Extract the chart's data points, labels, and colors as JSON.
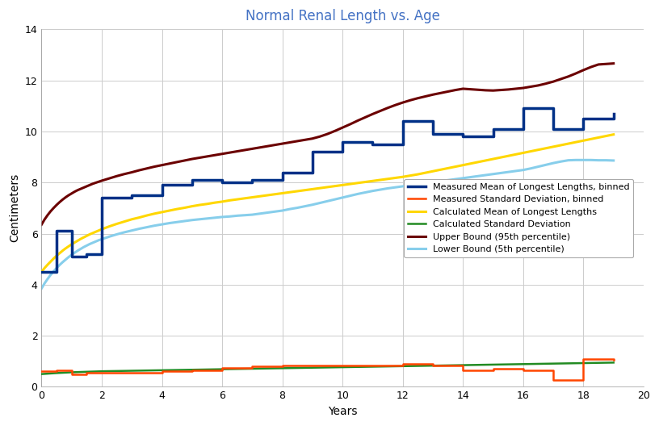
{
  "title": "Normal Renal Length vs. Age",
  "xlabel": "Years",
  "ylabel": "Centimeters",
  "xlim": [
    0,
    20
  ],
  "ylim": [
    0,
    14
  ],
  "xticks": [
    0,
    2,
    4,
    6,
    8,
    10,
    12,
    14,
    16,
    18,
    20
  ],
  "yticks": [
    0,
    2,
    4,
    6,
    8,
    10,
    12,
    14
  ],
  "title_color": "#4472C4",
  "background_color": "#FFFFFF",
  "legend": {
    "labels": [
      "Measured Mean of Longest Lengths, binned",
      "Measured Standard Deviation, binned",
      "Calculated Mean of Longest Lengths",
      "Calculated Standard Deviation",
      "Upper Bound (95th percentile)",
      "Lower Bound (5th percentile)"
    ],
    "colors": [
      "#003087",
      "#FF4500",
      "#FFD700",
      "#228B22",
      "#6B0000",
      "#87CEEB"
    ],
    "linewidths": [
      2.5,
      1.8,
      2.2,
      1.8,
      2.2,
      2.2
    ]
  },
  "measured_mean_binned_steps": {
    "x": [
      0.0,
      0.5,
      1.0,
      1.5,
      2.0,
      3.0,
      4.0,
      5.0,
      6.0,
      7.0,
      8.0,
      9.0,
      10.0,
      11.0,
      12.0,
      13.0,
      14.0,
      15.0,
      16.0,
      17.0,
      18.0,
      19.0
    ],
    "y": [
      4.5,
      6.1,
      5.1,
      5.2,
      7.4,
      7.5,
      7.9,
      8.1,
      8.0,
      8.1,
      8.4,
      9.2,
      9.6,
      9.5,
      10.4,
      9.9,
      9.8,
      10.1,
      10.9,
      10.1,
      10.5,
      10.7
    ],
    "color": "#003087",
    "linewidth": 2.5
  },
  "measured_std_binned_steps": {
    "x": [
      0.0,
      0.5,
      1.0,
      1.5,
      2.0,
      3.0,
      4.0,
      5.0,
      6.0,
      7.0,
      8.0,
      9.0,
      10.0,
      11.0,
      12.0,
      13.0,
      14.0,
      15.0,
      16.0,
      17.0,
      18.0,
      19.0
    ],
    "y": [
      0.6,
      0.65,
      0.5,
      0.55,
      0.55,
      0.55,
      0.6,
      0.65,
      0.75,
      0.8,
      0.85,
      0.85,
      0.85,
      0.85,
      0.9,
      0.85,
      0.65,
      0.7,
      0.65,
      0.28,
      1.1,
      1.05
    ],
    "color": "#FF4500",
    "linewidth": 1.8
  },
  "calc_mean": {
    "x": [
      0.0,
      0.1,
      0.2,
      0.3,
      0.4,
      0.5,
      0.6,
      0.7,
      0.8,
      0.9,
      1.0,
      1.1,
      1.2,
      1.3,
      1.4,
      1.5,
      1.6,
      1.7,
      1.8,
      1.9,
      2.0,
      2.25,
      2.5,
      2.75,
      3.0,
      3.25,
      3.5,
      3.75,
      4.0,
      4.25,
      4.5,
      4.75,
      5.0,
      5.25,
      5.5,
      5.75,
      6.0,
      6.25,
      6.5,
      6.75,
      7.0,
      7.25,
      7.5,
      7.75,
      8.0,
      8.25,
      8.5,
      8.75,
      9.0,
      9.25,
      9.5,
      9.75,
      10.0,
      10.25,
      10.5,
      10.75,
      11.0,
      11.25,
      11.5,
      11.75,
      12.0,
      12.25,
      12.5,
      12.75,
      13.0,
      13.25,
      13.5,
      13.75,
      14.0,
      14.25,
      14.5,
      14.75,
      15.0,
      15.25,
      15.5,
      15.75,
      16.0,
      16.25,
      16.5,
      16.75,
      17.0,
      17.25,
      17.5,
      17.75,
      18.0,
      18.25,
      18.5,
      18.75,
      19.0
    ],
    "y": [
      4.5,
      4.65,
      4.78,
      4.9,
      5.02,
      5.13,
      5.23,
      5.33,
      5.42,
      5.5,
      5.58,
      5.65,
      5.72,
      5.79,
      5.85,
      5.91,
      5.97,
      6.02,
      6.07,
      6.12,
      6.17,
      6.28,
      6.38,
      6.47,
      6.56,
      6.63,
      6.71,
      6.78,
      6.84,
      6.9,
      6.96,
      7.01,
      7.07,
      7.12,
      7.16,
      7.21,
      7.25,
      7.3,
      7.34,
      7.38,
      7.42,
      7.46,
      7.5,
      7.54,
      7.58,
      7.62,
      7.66,
      7.7,
      7.74,
      7.78,
      7.82,
      7.86,
      7.9,
      7.94,
      7.98,
      8.02,
      8.06,
      8.1,
      8.14,
      8.18,
      8.22,
      8.27,
      8.32,
      8.38,
      8.44,
      8.5,
      8.56,
      8.62,
      8.68,
      8.74,
      8.8,
      8.86,
      8.92,
      8.98,
      9.04,
      9.1,
      9.16,
      9.22,
      9.28,
      9.34,
      9.4,
      9.46,
      9.52,
      9.58,
      9.64,
      9.7,
      9.76,
      9.82,
      9.88
    ],
    "color": "#FFD700",
    "linewidth": 2.2
  },
  "calc_std": {
    "x": [
      0.0,
      0.5,
      1.0,
      1.5,
      2.0,
      3.0,
      4.0,
      5.0,
      6.0,
      7.0,
      8.0,
      9.0,
      10.0,
      11.0,
      12.0,
      13.0,
      14.0,
      15.0,
      16.0,
      17.0,
      18.0,
      19.0
    ],
    "y": [
      0.5,
      0.54,
      0.57,
      0.59,
      0.61,
      0.63,
      0.65,
      0.67,
      0.69,
      0.71,
      0.73,
      0.75,
      0.77,
      0.79,
      0.81,
      0.83,
      0.85,
      0.87,
      0.89,
      0.91,
      0.93,
      0.95
    ],
    "color": "#228B22",
    "linewidth": 1.8
  },
  "upper_bound": {
    "x": [
      0.0,
      0.1,
      0.2,
      0.3,
      0.4,
      0.5,
      0.6,
      0.7,
      0.8,
      0.9,
      1.0,
      1.1,
      1.2,
      1.3,
      1.4,
      1.5,
      1.6,
      1.7,
      1.8,
      1.9,
      2.0,
      2.25,
      2.5,
      2.75,
      3.0,
      3.25,
      3.5,
      3.75,
      4.0,
      4.25,
      4.5,
      4.75,
      5.0,
      5.25,
      5.5,
      5.75,
      6.0,
      6.25,
      6.5,
      6.75,
      7.0,
      7.25,
      7.5,
      7.75,
      8.0,
      8.25,
      8.5,
      8.75,
      9.0,
      9.25,
      9.5,
      9.75,
      10.0,
      10.25,
      10.5,
      10.75,
      11.0,
      11.25,
      11.5,
      11.75,
      12.0,
      12.25,
      12.5,
      12.75,
      13.0,
      13.25,
      13.5,
      13.75,
      14.0,
      14.25,
      14.5,
      14.75,
      15.0,
      15.25,
      15.5,
      15.75,
      16.0,
      16.25,
      16.5,
      16.75,
      17.0,
      17.25,
      17.5,
      17.75,
      18.0,
      18.25,
      18.5,
      18.75,
      19.0
    ],
    "y": [
      6.35,
      6.55,
      6.72,
      6.87,
      7.0,
      7.12,
      7.23,
      7.33,
      7.42,
      7.5,
      7.57,
      7.64,
      7.7,
      7.75,
      7.8,
      7.85,
      7.9,
      7.95,
      7.99,
      8.03,
      8.07,
      8.16,
      8.25,
      8.33,
      8.4,
      8.48,
      8.55,
      8.62,
      8.68,
      8.74,
      8.8,
      8.86,
      8.92,
      8.97,
      9.02,
      9.07,
      9.12,
      9.17,
      9.22,
      9.27,
      9.32,
      9.37,
      9.42,
      9.47,
      9.52,
      9.57,
      9.62,
      9.67,
      9.72,
      9.8,
      9.9,
      10.02,
      10.15,
      10.28,
      10.42,
      10.55,
      10.68,
      10.8,
      10.92,
      11.03,
      11.13,
      11.22,
      11.3,
      11.37,
      11.44,
      11.5,
      11.56,
      11.62,
      11.67,
      11.65,
      11.63,
      11.61,
      11.6,
      11.62,
      11.64,
      11.67,
      11.7,
      11.75,
      11.8,
      11.87,
      11.95,
      12.05,
      12.15,
      12.27,
      12.4,
      12.52,
      12.62,
      12.64,
      12.66
    ],
    "color": "#6B0000",
    "linewidth": 2.2
  },
  "lower_bound": {
    "x": [
      0.0,
      0.1,
      0.2,
      0.3,
      0.4,
      0.5,
      0.6,
      0.7,
      0.8,
      0.9,
      1.0,
      1.1,
      1.2,
      1.3,
      1.4,
      1.5,
      1.6,
      1.7,
      1.8,
      1.9,
      2.0,
      2.25,
      2.5,
      2.75,
      3.0,
      3.25,
      3.5,
      3.75,
      4.0,
      4.25,
      4.5,
      4.75,
      5.0,
      5.25,
      5.5,
      5.75,
      6.0,
      6.25,
      6.5,
      6.75,
      7.0,
      7.25,
      7.5,
      7.75,
      8.0,
      8.25,
      8.5,
      8.75,
      9.0,
      9.25,
      9.5,
      9.75,
      10.0,
      10.25,
      10.5,
      10.75,
      11.0,
      11.25,
      11.5,
      11.75,
      12.0,
      12.25,
      12.5,
      12.75,
      13.0,
      13.25,
      13.5,
      13.75,
      14.0,
      14.25,
      14.5,
      14.75,
      15.0,
      15.25,
      15.5,
      15.75,
      16.0,
      16.25,
      16.5,
      16.75,
      17.0,
      17.25,
      17.5,
      17.75,
      18.0,
      18.25,
      18.5,
      18.75,
      19.0
    ],
    "y": [
      3.85,
      4.05,
      4.22,
      4.38,
      4.52,
      4.65,
      4.77,
      4.88,
      4.98,
      5.08,
      5.17,
      5.25,
      5.33,
      5.4,
      5.47,
      5.53,
      5.59,
      5.64,
      5.69,
      5.74,
      5.78,
      5.88,
      5.97,
      6.05,
      6.12,
      6.19,
      6.25,
      6.31,
      6.36,
      6.41,
      6.45,
      6.49,
      6.53,
      6.56,
      6.59,
      6.62,
      6.65,
      6.67,
      6.7,
      6.72,
      6.74,
      6.78,
      6.82,
      6.86,
      6.9,
      6.96,
      7.01,
      7.07,
      7.13,
      7.2,
      7.27,
      7.34,
      7.41,
      7.48,
      7.55,
      7.61,
      7.67,
      7.72,
      7.77,
      7.81,
      7.85,
      7.89,
      7.93,
      7.97,
      8.01,
      8.05,
      8.09,
      8.13,
      8.17,
      8.21,
      8.25,
      8.29,
      8.33,
      8.37,
      8.41,
      8.45,
      8.49,
      8.55,
      8.62,
      8.69,
      8.76,
      8.82,
      8.87,
      8.88,
      8.88,
      8.88,
      8.87,
      8.87,
      8.86
    ],
    "color": "#87CEEB",
    "linewidth": 2.2
  }
}
